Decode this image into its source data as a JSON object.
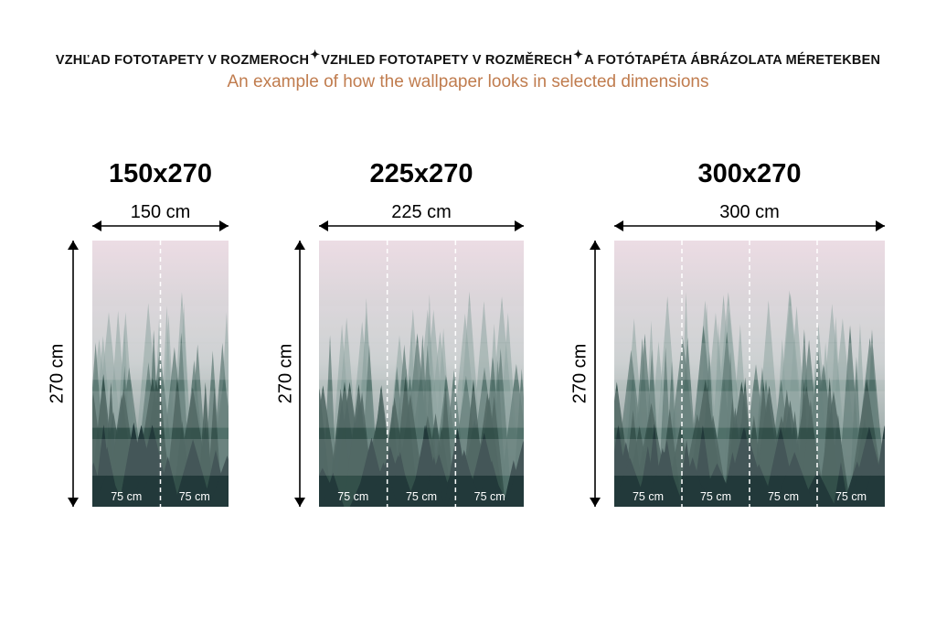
{
  "header": {
    "titles": [
      "VZHĽAD FOTOTAPETY V ROZMEROCH",
      "VZHLED FOTOTAPETY V ROZMĚRECH",
      "A FOTÓTAPÉTA ÁBRÁZOLATA MÉRETEKBEN"
    ],
    "separator_icon": "sparkle-icon",
    "subtitle": "An example of how the wallpaper looks in selected dimensions"
  },
  "colors": {
    "subtitle": "#c07c4e",
    "sky": "#e8d8e0",
    "forest": "#2f4a44",
    "divider": "#ffffff"
  },
  "panels": [
    {
      "title": "150x270",
      "width_label": "150 cm",
      "height_label": "270 cm",
      "strips": [
        "75 cm",
        "75 cm"
      ]
    },
    {
      "title": "225x270",
      "width_label": "225 cm",
      "height_label": "270 cm",
      "strips": [
        "75 cm",
        "75 cm",
        "75 cm"
      ]
    },
    {
      "title": "300x270",
      "width_label": "300 cm",
      "height_label": "270 cm",
      "strips": [
        "75 cm",
        "75 cm",
        "75 cm",
        "75 cm"
      ]
    }
  ]
}
